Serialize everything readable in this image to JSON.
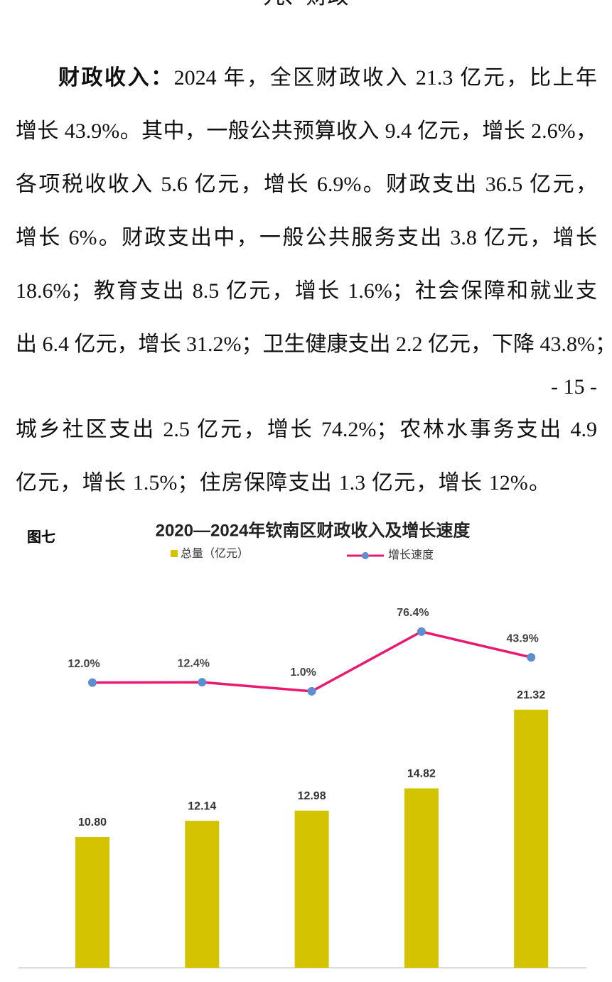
{
  "heading": "九、财政",
  "paragraph": {
    "lead": "财政收入：",
    "lines": [
      "2024 年，全区财政收入 21.3 亿元，比上年",
      "增长 43.9%。其中，一般公共预算收入 9.4 亿元，增长 2.6%，",
      "各项税收收入 5.6 亿元，增长 6.9%。财政支出 36.5 亿元，",
      "增长 6%。财政支出中，一般公共服务支出 3.8 亿元，增长",
      "18.6%；教育支出 8.5 亿元，增长 1.6%；社会保障和就业支",
      "出 6.4 亿元，增长 31.2%；卫生健康支出 2.2 亿元，下降 43.8%；"
    ]
  },
  "page_number": "- 15 -",
  "paragraph2": {
    "lines": [
      "城乡社区支出 2.5 亿元，增长 74.2%；农林水事务支出 4.9",
      "亿元，增长 1.5%；住房保障支出 1.3 亿元，增长 12%。"
    ]
  },
  "figure_label": "图七",
  "chart_data": {
    "type": "bar",
    "title": "2020—2024年钦南区财政收入及增长速度",
    "categories": [
      null,
      null,
      null,
      null,
      null
    ],
    "series": [
      {
        "name": "总量（亿元）",
        "type": "bar",
        "color": "#d4c300",
        "values": [
          10.8,
          12.14,
          12.98,
          14.82,
          21.32
        ],
        "value_labels": [
          "10.80",
          "12.14",
          "12.98",
          "14.82",
          "21.32"
        ]
      },
      {
        "name": "增长速度",
        "type": "line",
        "color": "#e8196f",
        "marker_color": "#5b8fd0",
        "values": [
          12.0,
          12.4,
          1.0,
          76.4,
          43.9
        ],
        "value_labels": [
          "12.0%",
          "12.4%",
          "1.0%",
          "76.4%",
          "43.9%"
        ]
      }
    ]
  }
}
